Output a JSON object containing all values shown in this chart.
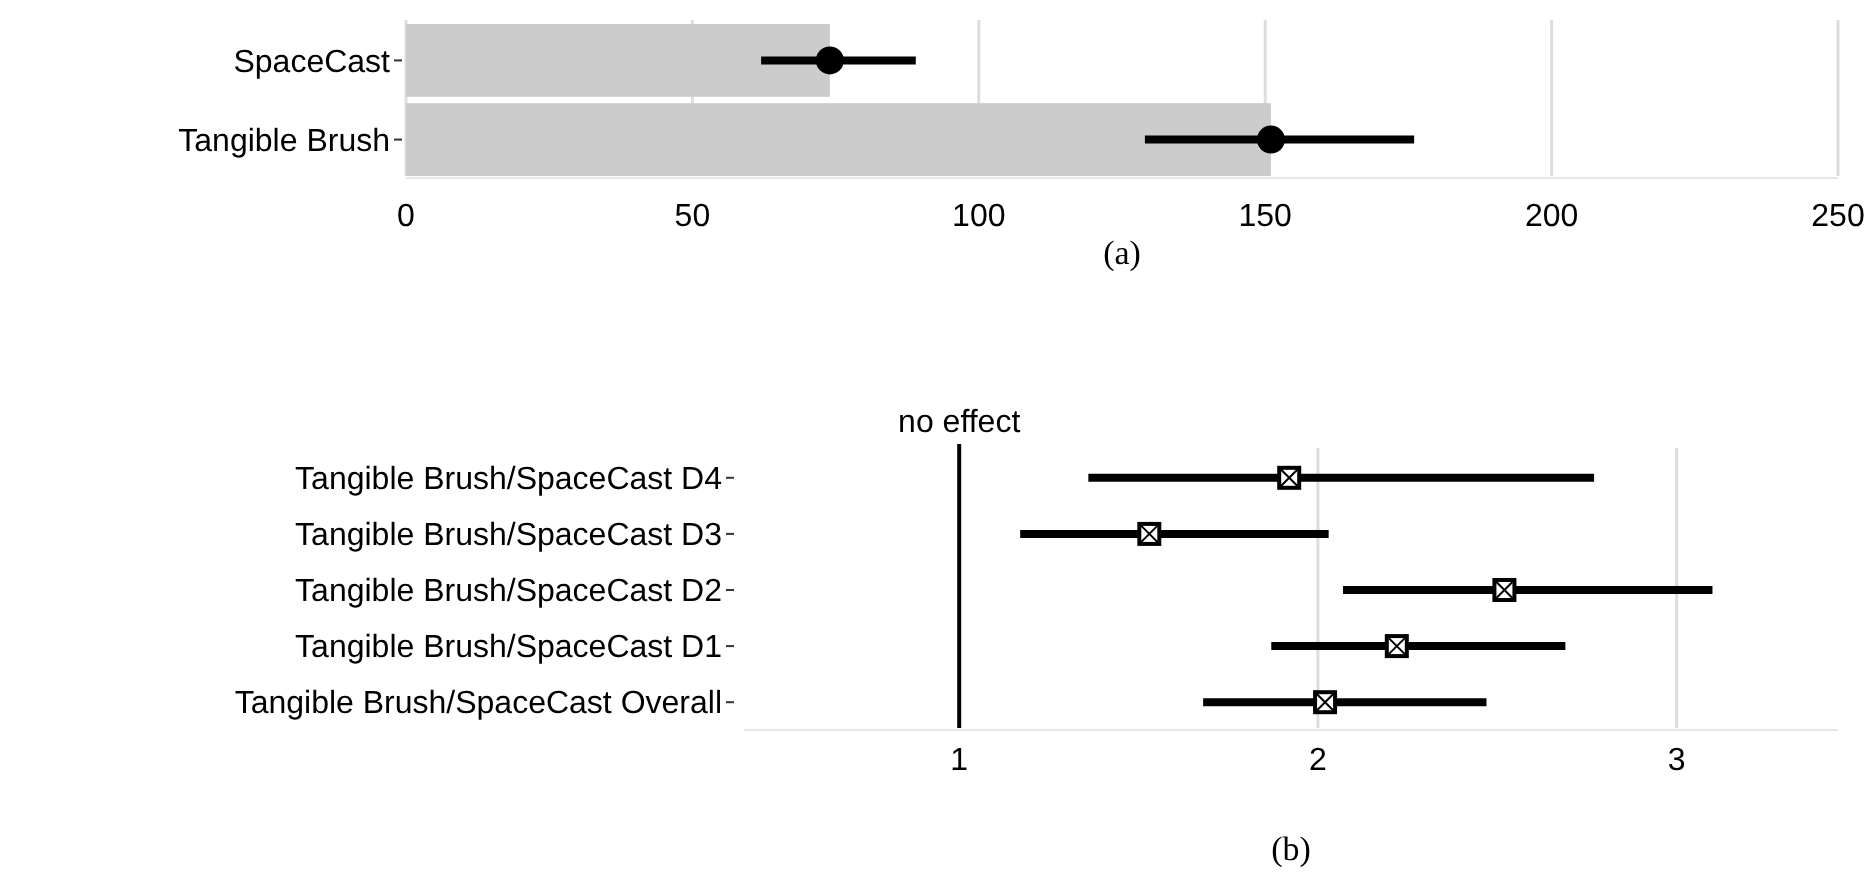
{
  "chart_data": [
    {
      "type": "bar",
      "orientation": "horizontal",
      "categories": [
        "SpaceCast",
        "Tangible Brush"
      ],
      "series": [
        {
          "color": "#cccccc",
          "values": [
            74,
            151
          ]
        },
        {
          "type": "scatter",
          "color": "#000000",
          "marker": "circle",
          "values": [
            74,
            151
          ],
          "errors": [
            [
              62,
              89
            ],
            [
              129,
              176
            ]
          ]
        }
      ],
      "xlim": [
        0,
        250
      ],
      "xticks": [
        0,
        50,
        100,
        150,
        200,
        250
      ],
      "grid": "x",
      "annotations": [
        "(a)"
      ]
    },
    {
      "type": "scatter",
      "orientation": "horizontal",
      "categories": [
        "Tangible Brush/SpaceCast D4",
        "Tangible Brush/SpaceCast D3",
        "Tangible Brush/SpaceCast D2",
        "Tangible Brush/SpaceCast D1",
        "Tangible Brush/SpaceCast Overall"
      ],
      "series": [
        {
          "color": "#000000",
          "marker": "square",
          "values": [
            1.92,
            1.53,
            2.52,
            2.22,
            2.02
          ],
          "errors": [
            [
              1.36,
              2.77
            ],
            [
              1.17,
              2.03
            ],
            [
              2.07,
              3.1
            ],
            [
              1.87,
              2.69
            ],
            [
              1.68,
              2.47
            ]
          ]
        }
      ],
      "xlim": [
        0.4,
        3.45
      ],
      "xticks": [
        1,
        2,
        3
      ],
      "grid": "x",
      "ref_lines": [
        {
          "axis": "x",
          "value": 1,
          "label": "no effect"
        }
      ],
      "annotations": [
        "(b)"
      ]
    }
  ]
}
